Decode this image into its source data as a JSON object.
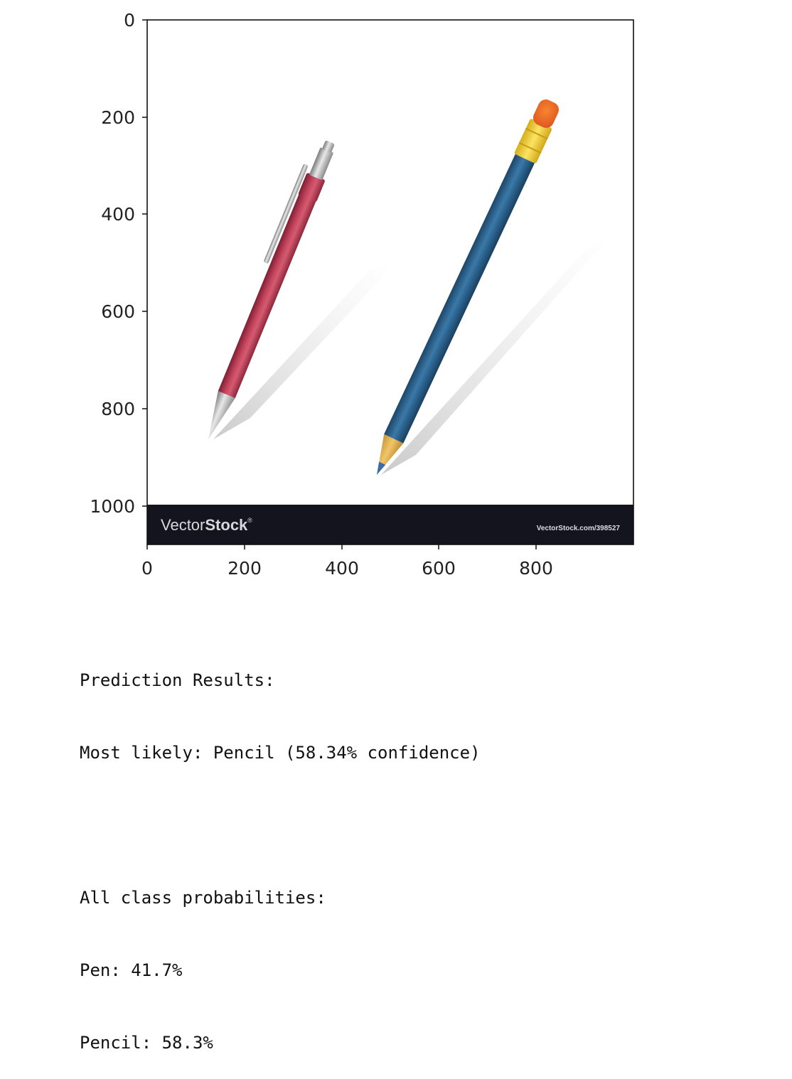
{
  "figure": {
    "x_ticks": [
      "0",
      "200",
      "400",
      "600",
      "800"
    ],
    "y_ticks": [
      "0",
      "200",
      "400",
      "600",
      "800",
      "1000"
    ],
    "watermark": {
      "brand_light": "Vector",
      "brand_bold": "Stock",
      "registered": "®",
      "url": "VectorStock.com/398527"
    },
    "colors": {
      "pen_body": "#b8354f",
      "pencil_body": "#2a5f8d",
      "eraser": "#ee6a2a",
      "ferrule": "#f1d23a",
      "banner": "#14141f"
    }
  },
  "output": {
    "heading": "Prediction Results:",
    "most_likely": "Most likely: Pencil (58.34% confidence)",
    "all_heading": "All class probabilities:",
    "classes": [
      {
        "text": "Pen: 41.7%"
      },
      {
        "text": "Pencil: 58.3%"
      }
    ]
  }
}
